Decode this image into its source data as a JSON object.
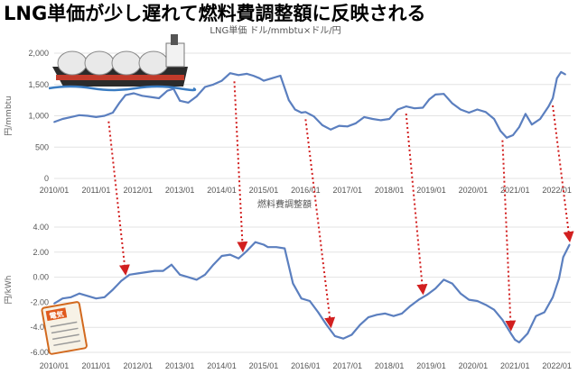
{
  "headline": "LNG単価が少し遅れて燃料費調整額に反映される",
  "colors": {
    "line": "#5b7fbf",
    "arrow": "#d21f1f",
    "grid": "#e3e3e3"
  },
  "icons": [
    "lng-tanker-icon",
    "electricity-bill-icon"
  ],
  "bill_icon_text": "電気",
  "chart_data": [
    {
      "type": "line",
      "title": "LNG単価 ドル/mmbtu×ドル/円",
      "ylabel": "円/mmbtu",
      "ylim": [
        0,
        2000
      ],
      "yticks": [
        0,
        500,
        1000,
        1500,
        2000
      ],
      "ytick_labels": [
        "0",
        "500",
        "1,000",
        "1,500",
        "2,000"
      ],
      "xlim": [
        2010.0,
        2022.33
      ],
      "xticks": [
        2010,
        2011,
        2012,
        2013,
        2014,
        2015,
        2016,
        2017,
        2018,
        2019,
        2020,
        2021,
        2022
      ],
      "xtick_labels": [
        "2010/01",
        "2011/01",
        "2012/01",
        "2013/01",
        "2014/01",
        "2015/01",
        "2016/01",
        "2017/01",
        "2018/01",
        "2019/01",
        "2020/01",
        "2021/01",
        "2022/01"
      ],
      "grid": true,
      "x": [
        2010.0,
        2010.2,
        2010.4,
        2010.6,
        2010.8,
        2011.0,
        2011.2,
        2011.4,
        2011.55,
        2011.7,
        2011.9,
        2012.1,
        2012.3,
        2012.5,
        2012.7,
        2012.85,
        2013.0,
        2013.2,
        2013.4,
        2013.6,
        2013.8,
        2014.0,
        2014.2,
        2014.4,
        2014.6,
        2014.75,
        2014.9,
        2015.0,
        2015.2,
        2015.4,
        2015.6,
        2015.75,
        2015.9,
        2016.0,
        2016.2,
        2016.4,
        2016.6,
        2016.8,
        2017.0,
        2017.2,
        2017.4,
        2017.6,
        2017.8,
        2018.0,
        2018.2,
        2018.4,
        2018.6,
        2018.8,
        2018.95,
        2019.1,
        2019.3,
        2019.5,
        2019.7,
        2019.9,
        2020.1,
        2020.3,
        2020.5,
        2020.65,
        2020.8,
        2020.95,
        2021.1,
        2021.25,
        2021.4,
        2021.6,
        2021.8,
        2021.9,
        2022.0,
        2022.1,
        2022.2
      ],
      "y": [
        900,
        950,
        980,
        1010,
        1000,
        980,
        1000,
        1050,
        1200,
        1330,
        1360,
        1320,
        1300,
        1280,
        1400,
        1430,
        1240,
        1210,
        1310,
        1460,
        1500,
        1560,
        1680,
        1650,
        1670,
        1640,
        1600,
        1560,
        1600,
        1640,
        1250,
        1100,
        1050,
        1060,
        990,
        850,
        780,
        840,
        830,
        880,
        980,
        950,
        930,
        950,
        1100,
        1150,
        1120,
        1130,
        1260,
        1340,
        1350,
        1200,
        1100,
        1050,
        1100,
        1060,
        950,
        760,
        650,
        690,
        820,
        1030,
        860,
        950,
        1150,
        1280,
        1600,
        1700,
        1660
      ]
    },
    {
      "type": "line",
      "title": "燃料費調整額",
      "ylabel": "円/kWh",
      "ylim": [
        -6,
        4
      ],
      "yticks": [
        -6,
        -4,
        -2,
        0,
        2,
        4
      ],
      "ytick_labels": [
        "-6.00",
        "-4.00",
        "-2.00",
        "0.00",
        "2.00",
        "4.00"
      ],
      "xlim": [
        2010.0,
        2022.33
      ],
      "xticks": [
        2010,
        2011,
        2012,
        2013,
        2014,
        2015,
        2016,
        2017,
        2018,
        2019,
        2020,
        2021,
        2022
      ],
      "xtick_labels": [
        "2010/01",
        "2011/01",
        "2012/01",
        "2013/01",
        "2014/01",
        "2015/01",
        "2016/01",
        "2017/01",
        "2018/01",
        "2019/01",
        "2020/01",
        "2021/01",
        "2022/01"
      ],
      "grid": true,
      "x": [
        2010.0,
        2010.2,
        2010.4,
        2010.6,
        2010.8,
        2011.0,
        2011.2,
        2011.4,
        2011.6,
        2011.8,
        2012.0,
        2012.2,
        2012.4,
        2012.6,
        2012.8,
        2013.0,
        2013.2,
        2013.4,
        2013.6,
        2013.8,
        2014.0,
        2014.2,
        2014.4,
        2014.6,
        2014.8,
        2015.0,
        2015.1,
        2015.3,
        2015.5,
        2015.7,
        2015.9,
        2016.1,
        2016.3,
        2016.5,
        2016.7,
        2016.9,
        2017.1,
        2017.3,
        2017.5,
        2017.7,
        2017.9,
        2018.1,
        2018.3,
        2018.5,
        2018.7,
        2018.9,
        2019.1,
        2019.3,
        2019.5,
        2019.7,
        2019.9,
        2020.1,
        2020.3,
        2020.5,
        2020.7,
        2020.9,
        2021.0,
        2021.1,
        2021.3,
        2021.5,
        2021.7,
        2021.9,
        2022.05,
        2022.15,
        2022.3
      ],
      "y": [
        -2.1,
        -1.7,
        -1.6,
        -1.3,
        -1.5,
        -1.7,
        -1.6,
        -1.0,
        -0.3,
        0.2,
        0.3,
        0.4,
        0.5,
        0.5,
        1.0,
        0.2,
        0.0,
        -0.2,
        0.2,
        1.0,
        1.7,
        1.8,
        1.5,
        2.1,
        2.8,
        2.6,
        2.4,
        2.4,
        2.3,
        -0.5,
        -1.7,
        -1.9,
        -2.8,
        -3.8,
        -4.7,
        -4.9,
        -4.6,
        -3.8,
        -3.2,
        -3.0,
        -2.9,
        -3.1,
        -2.9,
        -2.3,
        -1.8,
        -1.4,
        -0.9,
        -0.2,
        -0.5,
        -1.3,
        -1.8,
        -1.9,
        -2.2,
        -2.6,
        -3.4,
        -4.5,
        -5.0,
        -5.2,
        -4.5,
        -3.1,
        -2.8,
        -1.6,
        -0.1,
        1.6,
        2.6
      ]
    }
  ],
  "arrows": [
    {
      "from_x": 2011.3,
      "to_x": 2011.7
    },
    {
      "from_x": 2014.3,
      "to_x": 2014.5
    },
    {
      "from_x": 2016.0,
      "to_x": 2016.6
    },
    {
      "from_x": 2018.4,
      "to_x": 2018.8
    },
    {
      "from_x": 2020.7,
      "to_x": 2020.9
    },
    {
      "from_x": 2021.9,
      "to_x": 2022.3
    }
  ]
}
